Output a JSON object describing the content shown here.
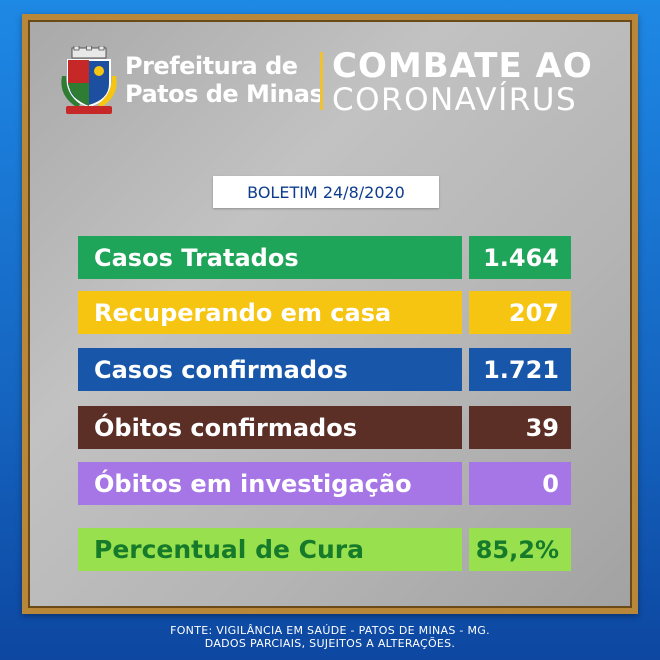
{
  "header": {
    "pref_line1": "Prefeitura de",
    "pref_line2": "Patos de Minas",
    "campaign_line1": "COMBATE AO",
    "campaign_line2": "CORONAVÍRUS",
    "crest_icon": "municipal-coat-of-arms-icon"
  },
  "boletim": "BOLETIM 24/8/2020",
  "stats": [
    {
      "label": "Casos Tratados",
      "value": "1.464",
      "color": "#1fa55a"
    },
    {
      "label": "Recuperando em casa",
      "value": "207",
      "color": "#f6c511"
    },
    {
      "label": "Casos confirmados",
      "value": "1.721",
      "color": "#1756a8"
    },
    {
      "label": "Óbitos confirmados",
      "value": "39",
      "color": "#5b2e26"
    },
    {
      "label": "Óbitos em investigação",
      "value": "0",
      "color": "#a776e6"
    },
    {
      "label": "Percentual de Cura",
      "value": "85,2%",
      "color": "#98e04e"
    }
  ],
  "footer": {
    "line1": "FONTE: VIGILÂNCIA EM SAÚDE - PATOS DE MINAS - MG.",
    "line2": "DADOS PARCIAIS, SUJEITOS A ALTERAÇÕES."
  }
}
